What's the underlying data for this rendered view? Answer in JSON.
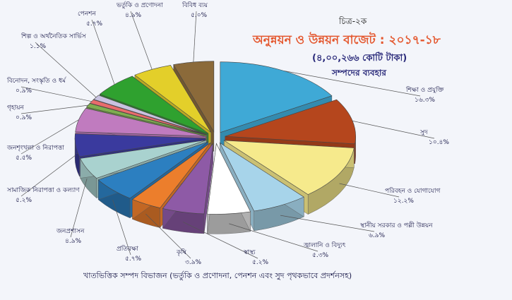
{
  "figure_no": "চিত্র-২ক",
  "title": "অনুন্নয়ন ও উন্নয়ন বাজেট : ২০১৭-১৮",
  "subtitle": "(৪,০০,২৬৬ কোটি টাকা)",
  "subtitle2": "সম্পদের ব্যবহার",
  "caption": "খাতভিত্তিক সম্পদ বিভাজন (ভর্তুকি ও প্রণোদনা, পেনশন এবং সুদ পৃথকভাবে প্রদর্শনসহ)",
  "chart_data": {
    "type": "pie",
    "title": "অনুন্নয়ন ও উন্নয়ন বাজেট : ২০১৭-১৮",
    "slices": [
      {
        "label": "শিক্ষা ও প্রযুক্তি",
        "value_text": "১৬.৩%",
        "value": 16.3,
        "color": "#3fa9d6"
      },
      {
        "label": "সুদ",
        "value_text": "১০.৪%",
        "value": 10.4,
        "color": "#b5461d"
      },
      {
        "label": "পরিবহন ও যোগাযোগ",
        "value_text": "১২.২%",
        "value": 12.2,
        "color": "#f6ea8c"
      },
      {
        "label": "স্থানীয় সরকার ও পল্লী উন্নয়ন",
        "value_text": "৬.৯%",
        "value": 6.9,
        "color": "#a7d4ea"
      },
      {
        "label": "জ্বালানি ও বিদ্যুৎ",
        "value_text": "৫.৩%",
        "value": 5.3,
        "color": "#ffffff"
      },
      {
        "label": "স্বাস্থ্য",
        "value_text": "৫.২%",
        "value": 5.2,
        "color": "#8e5aa6"
      },
      {
        "label": "কৃষি",
        "value_text": "৩.৯%",
        "value": 3.9,
        "color": "#ec7e2c"
      },
      {
        "label": "প্রতিরক্ষা",
        "value_text": "৫.৭%",
        "value": 5.7,
        "color": "#2c7fc0"
      },
      {
        "label": "জনপ্রশাসন",
        "value_text": "৪.৯%",
        "value": 4.9,
        "color": "#a9d2cf"
      },
      {
        "label": "সামাজিক নিরাপত্তা ও কল্যাণ",
        "value_text": "৫.২%",
        "value": 5.2,
        "color": "#3a3a9e"
      },
      {
        "label": "জনশৃংখলা ও নিরাপত্তা",
        "value_text": "৫.৫%",
        "value": 5.5,
        "color": "#c07bbf"
      },
      {
        "label": "গৃহায়ন",
        "value_text": "০.৯%",
        "value": 0.9,
        "color": "#7fae4f"
      },
      {
        "label": "বিনোদন, সংস্কৃতি ও ধর্ম",
        "value_text": "০.৯%",
        "value": 0.9,
        "color": "#e86c6c"
      },
      {
        "label": "শিল্প ও অর্থনৈতিক সার্ভিস",
        "value_text": "১.১%",
        "value": 1.1,
        "color": "#c9c2e0"
      },
      {
        "label": "পেনশন",
        "value_text": "৫.৭%",
        "value": 5.7,
        "color": "#2fa12f"
      },
      {
        "label": "ভর্তুকি ও প্রণোদনা",
        "value_text": "৪.৯%",
        "value": 4.9,
        "color": "#e3cf2a"
      },
      {
        "label": "বিবিধ ব্যয়",
        "value_text": "৫.০%",
        "value": 5.0,
        "color": "#8b6a3a"
      }
    ]
  }
}
